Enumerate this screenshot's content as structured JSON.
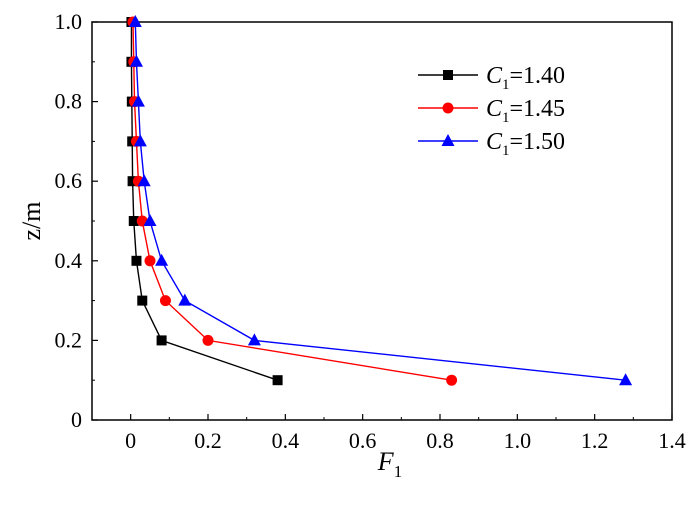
{
  "chart_data": {
    "type": "line",
    "orientation": "vertical-profile",
    "xlabel": "F",
    "xlabel_subscript": "1",
    "ylabel": "z/m",
    "xlim": [
      -0.1,
      1.4
    ],
    "ylim": [
      0,
      1.0
    ],
    "x_ticks": [
      0,
      0.2,
      0.4,
      0.6,
      0.8,
      1.0,
      1.2,
      1.4
    ],
    "x_tick_labels": [
      "0",
      "0.2",
      "0.4",
      "0.6",
      "0.8",
      "1.0",
      "1.2",
      "1.4"
    ],
    "y_ticks": [
      0,
      0.2,
      0.4,
      0.6,
      0.8,
      1.0
    ],
    "y_tick_labels": [
      "0",
      "0.2",
      "0.4",
      "0.6",
      "0.8",
      "1.0"
    ],
    "grid": false,
    "legend_position": "top-right",
    "series": [
      {
        "name": "C1=1.40",
        "label_main": "C",
        "label_sub": "1",
        "label_value": "=1.40",
        "color": "#000000",
        "marker": "square",
        "points": [
          {
            "x": 0.38,
            "y": 0.1
          },
          {
            "x": 0.08,
            "y": 0.2
          },
          {
            "x": 0.03,
            "y": 0.3
          },
          {
            "x": 0.015,
            "y": 0.4
          },
          {
            "x": 0.008,
            "y": 0.5
          },
          {
            "x": 0.005,
            "y": 0.6
          },
          {
            "x": 0.004,
            "y": 0.7
          },
          {
            "x": 0.003,
            "y": 0.8
          },
          {
            "x": 0.002,
            "y": 0.9
          },
          {
            "x": 0.002,
            "y": 1.0
          }
        ]
      },
      {
        "name": "C1=1.45",
        "label_main": "C",
        "label_sub": "1",
        "label_value": "=1.45",
        "color": "#ff0000",
        "marker": "circle",
        "points": [
          {
            "x": 0.83,
            "y": 0.1
          },
          {
            "x": 0.2,
            "y": 0.2
          },
          {
            "x": 0.09,
            "y": 0.3
          },
          {
            "x": 0.05,
            "y": 0.4
          },
          {
            "x": 0.03,
            "y": 0.5
          },
          {
            "x": 0.02,
            "y": 0.6
          },
          {
            "x": 0.015,
            "y": 0.7
          },
          {
            "x": 0.01,
            "y": 0.8
          },
          {
            "x": 0.008,
            "y": 0.9
          },
          {
            "x": 0.006,
            "y": 1.0
          }
        ]
      },
      {
        "name": "C1=1.50",
        "label_main": "C",
        "label_sub": "1",
        "label_value": "=1.50",
        "color": "#0000ff",
        "marker": "triangle",
        "points": [
          {
            "x": 1.28,
            "y": 0.1
          },
          {
            "x": 0.32,
            "y": 0.2
          },
          {
            "x": 0.14,
            "y": 0.3
          },
          {
            "x": 0.08,
            "y": 0.4
          },
          {
            "x": 0.05,
            "y": 0.5
          },
          {
            "x": 0.035,
            "y": 0.6
          },
          {
            "x": 0.025,
            "y": 0.7
          },
          {
            "x": 0.02,
            "y": 0.8
          },
          {
            "x": 0.015,
            "y": 0.9
          },
          {
            "x": 0.012,
            "y": 1.0
          }
        ]
      }
    ]
  }
}
